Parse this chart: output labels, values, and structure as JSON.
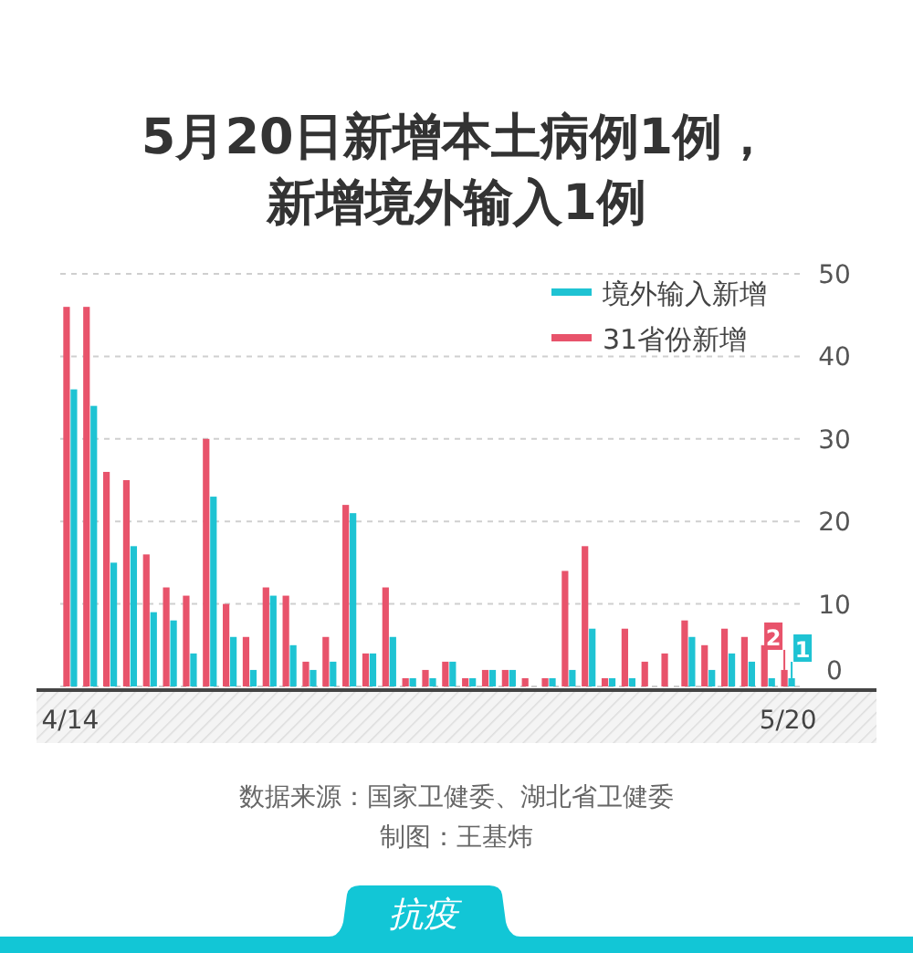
{
  "chart_data": {
    "type": "bar",
    "title": "5月20日新增本土病例1例，新增境外输入1例",
    "categories": [
      "4/14",
      null,
      null,
      null,
      null,
      null,
      null,
      null,
      null,
      null,
      null,
      null,
      null,
      null,
      null,
      null,
      null,
      null,
      null,
      null,
      null,
      null,
      null,
      null,
      null,
      null,
      null,
      null,
      null,
      null,
      null,
      null,
      null,
      null,
      null,
      null,
      "5/20"
    ],
    "series": [
      {
        "name": "境外输入新增",
        "color": "#1fc3d3",
        "values": [
          36,
          34,
          15,
          17,
          9,
          8,
          4,
          23,
          6,
          2,
          11,
          5,
          2,
          3,
          21,
          4,
          6,
          1,
          1,
          3,
          1,
          2,
          2,
          0,
          1,
          2,
          7,
          1,
          1,
          0,
          0,
          6,
          2,
          4,
          3,
          1,
          1
        ],
        "value_labels": [
          null,
          null,
          null,
          null,
          null,
          null,
          null,
          null,
          null,
          null,
          null,
          null,
          null,
          null,
          null,
          null,
          null,
          null,
          null,
          null,
          null,
          null,
          null,
          null,
          null,
          null,
          null,
          null,
          null,
          null,
          null,
          null,
          null,
          null,
          null,
          null,
          "1"
        ]
      },
      {
        "name": "31省份新增",
        "color": "#e8536b",
        "values": [
          46,
          46,
          26,
          25,
          16,
          12,
          11,
          30,
          10,
          6,
          12,
          11,
          3,
          6,
          22,
          4,
          12,
          1,
          2,
          3,
          1,
          2,
          2,
          1,
          1,
          14,
          17,
          1,
          7,
          3,
          4,
          8,
          5,
          7,
          6,
          5,
          2
        ],
        "value_labels": [
          null,
          null,
          null,
          null,
          null,
          null,
          null,
          null,
          null,
          null,
          null,
          null,
          null,
          null,
          null,
          null,
          null,
          null,
          null,
          null,
          null,
          null,
          null,
          null,
          null,
          null,
          null,
          null,
          null,
          null,
          null,
          null,
          null,
          null,
          null,
          null,
          "2"
        ]
      }
    ],
    "ylim": [
      0,
      50
    ],
    "yticks": [
      0,
      10,
      20,
      30,
      40,
      50
    ],
    "grid": "y",
    "legend": "top right",
    "annotations": [
      "数据来源：国家卫健委、湖北省卫健委",
      "制图：王基炜",
      "抗疫"
    ]
  }
}
